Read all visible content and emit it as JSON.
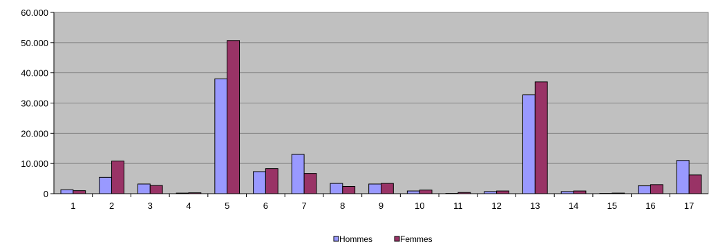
{
  "chart_data": {
    "type": "bar",
    "categories": [
      "1",
      "2",
      "3",
      "4",
      "5",
      "6",
      "7",
      "8",
      "9",
      "10",
      "11",
      "12",
      "13",
      "14",
      "15",
      "16",
      "17"
    ],
    "series": [
      {
        "name": "Hommes",
        "color": "#9999ff",
        "values": [
          1300,
          5400,
          3200,
          200,
          38000,
          7300,
          13000,
          3400,
          3200,
          900,
          100,
          700,
          32700,
          700,
          100,
          2600,
          11000
        ]
      },
      {
        "name": "Femmes",
        "color": "#993366",
        "values": [
          1000,
          10800,
          2700,
          300,
          50700,
          8300,
          6700,
          2400,
          3400,
          1200,
          400,
          900,
          37000,
          900,
          200,
          3000,
          6200
        ]
      }
    ],
    "y_ticks": [
      "0",
      "10.000",
      "20.000",
      "30.000",
      "40.000",
      "50.000",
      "60.000"
    ],
    "ylim": [
      0,
      60000
    ],
    "grid": true,
    "plot_background": "#c0c0c0",
    "legend_position": "bottom-center",
    "title": "",
    "xlabel": "",
    "ylabel": ""
  }
}
